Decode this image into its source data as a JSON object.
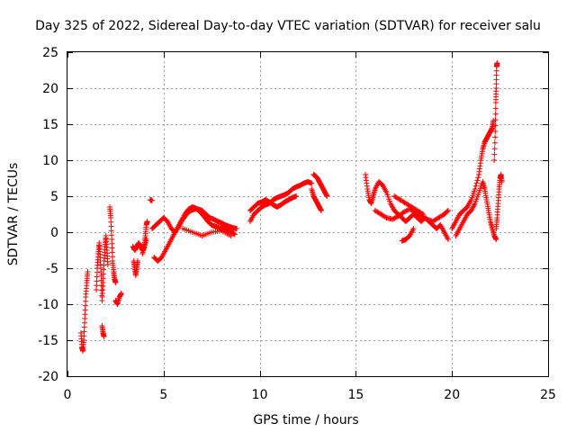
{
  "chart_data": {
    "type": "scatter",
    "title": "Day 325 of 2022, Sidereal Day-to-day VTEC variation (SDTVAR) for receiver salu",
    "xlabel": "GPS time / hours",
    "ylabel": "SDTVAR / TECUs",
    "xlim": [
      0,
      25
    ],
    "ylim": [
      -20,
      25
    ],
    "xticks": [
      0,
      5,
      10,
      15,
      20,
      25
    ],
    "yticks": [
      -20,
      -15,
      -10,
      -5,
      0,
      5,
      10,
      15,
      20,
      25
    ],
    "grid": true,
    "marker": "+",
    "color": "#ff0000",
    "series": [
      {
        "name": "SDTVAR",
        "tracks": [
          [
            [
              0.7,
              -14.0
            ],
            [
              0.75,
              -16.0
            ],
            [
              0.8,
              -16.5
            ],
            [
              0.85,
              -15.0
            ],
            [
              0.9,
              -12.0
            ],
            [
              0.95,
              -9.0
            ],
            [
              1.0,
              -7.0
            ],
            [
              1.05,
              -5.5
            ]
          ],
          [
            [
              1.5,
              -8.0
            ],
            [
              1.55,
              -5.0
            ],
            [
              1.6,
              -3.0
            ],
            [
              1.65,
              -1.5
            ],
            [
              1.7,
              -3.5
            ],
            [
              1.75,
              -6.0
            ],
            [
              1.8,
              -9.5
            ],
            [
              1.85,
              -7.0
            ],
            [
              1.9,
              -4.0
            ],
            [
              1.95,
              -2.0
            ],
            [
              2.0,
              -0.5
            ],
            [
              2.05,
              -2.5
            ],
            [
              2.1,
              -4.5
            ]
          ],
          [
            [
              1.8,
              -13.0
            ],
            [
              1.85,
              -14.0
            ],
            [
              1.9,
              -14.5
            ]
          ],
          [
            [
              2.2,
              3.5
            ],
            [
              2.25,
              2.0
            ],
            [
              2.3,
              -1.0
            ],
            [
              2.35,
              -4.0
            ],
            [
              2.4,
              -5.5
            ],
            [
              2.45,
              -6.5
            ],
            [
              2.5,
              -7.0
            ]
          ],
          [
            [
              2.5,
              -9.5
            ],
            [
              2.6,
              -10.0
            ],
            [
              2.7,
              -9.0
            ],
            [
              2.8,
              -8.5
            ]
          ],
          [
            [
              3.4,
              -2.0
            ],
            [
              3.5,
              -2.5
            ],
            [
              3.6,
              -2.0
            ],
            [
              3.7,
              -1.5
            ],
            [
              3.8,
              -2.0
            ],
            [
              3.9,
              -2.5
            ],
            [
              4.0,
              -2.0
            ],
            [
              4.05,
              -0.5
            ],
            [
              4.1,
              1.0
            ],
            [
              4.15,
              1.5
            ]
          ],
          [
            [
              3.45,
              -4.0
            ],
            [
              3.5,
              -5.0
            ],
            [
              3.55,
              -6.0
            ],
            [
              3.6,
              -5.0
            ],
            [
              3.65,
              -4.0
            ]
          ],
          [
            [
              3.9,
              -3.0
            ],
            [
              4.0,
              -2.0
            ],
            [
              4.1,
              -1.0
            ]
          ],
          [
            [
              4.3,
              4.5
            ],
            [
              4.4,
              4.4
            ]
          ],
          [
            [
              4.5,
              -3.5
            ],
            [
              4.7,
              -4.0
            ],
            [
              4.9,
              -3.5
            ],
            [
              5.1,
              -2.5
            ],
            [
              5.3,
              -1.5
            ],
            [
              5.5,
              -0.5
            ],
            [
              5.7,
              0.5
            ],
            [
              5.9,
              1.5
            ],
            [
              6.1,
              2.5
            ],
            [
              6.3,
              3.2
            ],
            [
              6.5,
              3.5
            ],
            [
              6.7,
              3.3
            ],
            [
              6.9,
              2.8
            ],
            [
              7.1,
              2.2
            ],
            [
              7.3,
              1.5
            ],
            [
              7.5,
              1.0
            ],
            [
              7.7,
              0.8
            ],
            [
              7.9,
              0.6
            ],
            [
              8.1,
              0.5
            ],
            [
              8.3,
              0.3
            ],
            [
              8.5,
              0.1
            ],
            [
              8.7,
              -0.3
            ]
          ],
          [
            [
              4.4,
              0.5
            ],
            [
              4.6,
              1.0
            ],
            [
              4.8,
              1.5
            ],
            [
              5.0,
              2.0
            ],
            [
              5.2,
              1.5
            ],
            [
              5.4,
              0.5
            ],
            [
              5.6,
              0.0
            ],
            [
              5.8,
              0.8
            ],
            [
              6.0,
              1.8
            ],
            [
              6.2,
              2.5
            ],
            [
              6.4,
              3.0
            ],
            [
              6.6,
              3.2
            ],
            [
              6.8,
              3.2
            ],
            [
              7.0,
              3.0
            ],
            [
              7.2,
              2.5
            ],
            [
              7.4,
              2.0
            ],
            [
              7.6,
              1.8
            ],
            [
              7.8,
              1.5
            ],
            [
              8.0,
              1.3
            ],
            [
              8.2,
              1.0
            ],
            [
              8.4,
              0.8
            ],
            [
              8.6,
              0.6
            ],
            [
              8.8,
              0.5
            ]
          ],
          [
            [
              6.0,
              0.5
            ],
            [
              6.5,
              0.0
            ],
            [
              7.0,
              -0.5
            ],
            [
              7.5,
              0.0
            ],
            [
              8.0,
              0.2
            ],
            [
              8.5,
              -0.5
            ]
          ],
          [
            [
              9.5,
              1.5
            ],
            [
              9.7,
              2.5
            ],
            [
              9.9,
              3.0
            ],
            [
              10.1,
              3.5
            ],
            [
              10.3,
              3.8
            ],
            [
              10.5,
              4.0
            ],
            [
              10.7,
              4.5
            ],
            [
              10.9,
              4.8
            ],
            [
              11.1,
              5.0
            ],
            [
              11.3,
              5.2
            ],
            [
              11.5,
              5.5
            ],
            [
              11.7,
              6.0
            ],
            [
              11.9,
              6.3
            ],
            [
              12.1,
              6.5
            ],
            [
              12.3,
              6.8
            ],
            [
              12.5,
              7.0
            ],
            [
              12.7,
              6.8
            ]
          ],
          [
            [
              9.5,
              3.0
            ],
            [
              9.7,
              3.5
            ],
            [
              9.9,
              4.0
            ],
            [
              10.1,
              4.2
            ],
            [
              10.3,
              4.5
            ],
            [
              10.5,
              4.2
            ],
            [
              10.7,
              3.8
            ],
            [
              10.9,
              3.5
            ],
            [
              11.1,
              3.8
            ],
            [
              11.3,
              4.2
            ],
            [
              11.5,
              4.5
            ],
            [
              11.7,
              4.8
            ],
            [
              11.9,
              5.0
            ]
          ],
          [
            [
              12.8,
              8.0
            ],
            [
              12.9,
              7.8
            ],
            [
              13.0,
              7.5
            ],
            [
              13.1,
              7.0
            ],
            [
              13.2,
              6.5
            ],
            [
              13.3,
              6.0
            ],
            [
              13.4,
              5.5
            ],
            [
              13.5,
              5.0
            ]
          ],
          [
            [
              12.7,
              6.0
            ],
            [
              12.8,
              5.0
            ],
            [
              12.9,
              4.5
            ],
            [
              13.0,
              4.0
            ],
            [
              13.1,
              3.5
            ],
            [
              13.2,
              3.0
            ]
          ],
          [
            [
              15.5,
              8.0
            ],
            [
              15.6,
              6.0
            ],
            [
              15.7,
              4.5
            ],
            [
              15.8,
              4.0
            ],
            [
              15.9,
              5.0
            ],
            [
              16.0,
              6.0
            ],
            [
              16.2,
              7.0
            ],
            [
              16.4,
              6.5
            ],
            [
              16.6,
              5.5
            ],
            [
              16.8,
              4.0
            ],
            [
              17.0,
              3.0
            ],
            [
              17.2,
              2.5
            ],
            [
              17.4,
              2.0
            ],
            [
              17.6,
              1.5
            ],
            [
              17.8,
              2.0
            ],
            [
              18.0,
              2.5
            ],
            [
              18.2,
              2.0
            ],
            [
              18.4,
              1.5
            ],
            [
              18.6,
              2.0
            ],
            [
              18.8,
              1.5
            ],
            [
              19.0,
              1.0
            ],
            [
              19.2,
              0.5
            ],
            [
              19.4,
              1.0
            ],
            [
              19.6,
              0.0
            ],
            [
              19.8,
              -1.0
            ]
          ],
          [
            [
              16.0,
              3.0
            ],
            [
              16.3,
              2.5
            ],
            [
              16.6,
              2.0
            ],
            [
              16.9,
              1.8
            ],
            [
              17.2,
              2.2
            ],
            [
              17.5,
              2.8
            ],
            [
              17.8,
              3.2
            ],
            [
              18.1,
              2.8
            ],
            [
              18.4,
              2.2
            ],
            [
              18.7,
              1.8
            ],
            [
              19.0,
              1.5
            ],
            [
              19.3,
              2.0
            ],
            [
              19.6,
              2.5
            ],
            [
              19.8,
              3.0
            ]
          ],
          [
            [
              17.0,
              5.0
            ],
            [
              17.3,
              4.5
            ],
            [
              17.6,
              4.0
            ],
            [
              17.9,
              3.5
            ],
            [
              18.2,
              3.0
            ],
            [
              18.5,
              2.5
            ]
          ],
          [
            [
              18.0,
              0.5
            ],
            [
              17.8,
              -0.5
            ],
            [
              17.6,
              -1.0
            ],
            [
              17.4,
              -1.2
            ]
          ],
          [
            [
              20.0,
              0.5
            ],
            [
              20.2,
              1.5
            ],
            [
              20.4,
              2.5
            ],
            [
              20.6,
              3.0
            ],
            [
              20.8,
              3.5
            ],
            [
              21.0,
              4.5
            ],
            [
              21.2,
              6.0
            ],
            [
              21.4,
              8.0
            ],
            [
              21.5,
              10.0
            ],
            [
              21.6,
              11.5
            ],
            [
              21.7,
              12.5
            ],
            [
              21.8,
              13.0
            ],
            [
              21.9,
              13.5
            ],
            [
              22.0,
              14.0
            ],
            [
              22.1,
              14.5
            ],
            [
              22.15,
              15.5
            ]
          ],
          [
            [
              20.2,
              -0.5
            ],
            [
              20.4,
              0.5
            ],
            [
              20.6,
              1.5
            ],
            [
              20.8,
              2.5
            ],
            [
              21.0,
              3.0
            ],
            [
              21.2,
              4.0
            ],
            [
              21.4,
              5.5
            ],
            [
              21.6,
              7.0
            ],
            [
              21.7,
              6.0
            ],
            [
              21.8,
              4.5
            ],
            [
              21.9,
              3.0
            ],
            [
              22.0,
              1.5
            ],
            [
              22.1,
              0.5
            ],
            [
              22.2,
              -0.5
            ],
            [
              22.3,
              -1.0
            ]
          ],
          [
            [
              22.2,
              10.0
            ],
            [
              22.25,
              14.0
            ],
            [
              22.28,
              18.0
            ],
            [
              22.3,
              20.0
            ],
            [
              22.32,
              23.0
            ],
            [
              22.35,
              23.5
            ]
          ],
          [
            [
              22.3,
              0.5
            ],
            [
              22.35,
              2.0
            ],
            [
              22.4,
              4.0
            ],
            [
              22.45,
              6.0
            ],
            [
              22.5,
              7.5
            ],
            [
              22.55,
              8.0
            ],
            [
              22.6,
              7.0
            ]
          ]
        ]
      }
    ]
  }
}
